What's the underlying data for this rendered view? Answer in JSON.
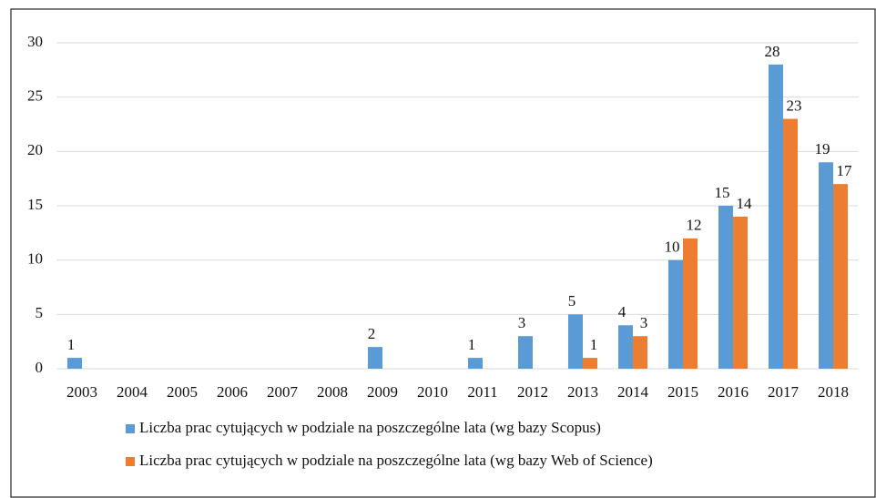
{
  "chart_data": {
    "type": "bar",
    "categories": [
      "2003",
      "2004",
      "2005",
      "2006",
      "2007",
      "2008",
      "2009",
      "2010",
      "2011",
      "2012",
      "2013",
      "2014",
      "2015",
      "2016",
      "2017",
      "2018"
    ],
    "series": [
      {
        "name": "Liczba prac cytujących w podziale na poszczególne lata (wg bazy Scopus)",
        "color": "#5b9bd5",
        "values": [
          1,
          null,
          null,
          null,
          null,
          null,
          2,
          null,
          1,
          3,
          5,
          4,
          10,
          15,
          28,
          19
        ]
      },
      {
        "name": "Liczba prac cytujących w podziale na poszczególne lata (wg bazy Web of Science)",
        "color": "#ed7d31",
        "values": [
          null,
          null,
          null,
          null,
          null,
          null,
          null,
          null,
          null,
          null,
          1,
          3,
          12,
          14,
          23,
          17
        ]
      }
    ],
    "ylim": [
      0,
      30
    ],
    "yticks": [
      0,
      5,
      10,
      15,
      20,
      25,
      30
    ],
    "grid": true,
    "legend": "bottom"
  }
}
